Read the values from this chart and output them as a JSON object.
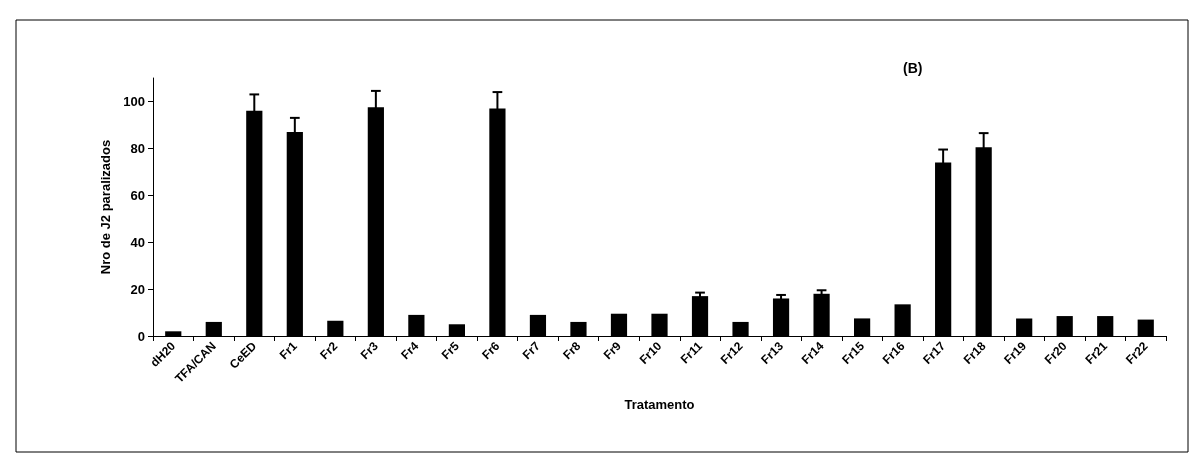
{
  "chart_data": {
    "type": "bar",
    "title": "(B)",
    "xlabel": "Tratamento",
    "ylabel": "Nro de J2 paralizados",
    "categories": [
      "dH20",
      "TFA/CAN",
      "CeED",
      "Fr1",
      "Fr2",
      "Fr3",
      "Fr4",
      "Fr5",
      "Fr6",
      "Fr7",
      "Fr8",
      "Fr9",
      "Fr10",
      "Fr11",
      "Fr12",
      "Fr13",
      "Fr14",
      "Fr15",
      "Fr16",
      "Fr17",
      "Fr18",
      "Fr19",
      "Fr20",
      "Fr21",
      "Fr22"
    ],
    "values": [
      2,
      6,
      96,
      87,
      6.5,
      97.5,
      9,
      5,
      97,
      9,
      6,
      9.5,
      9.5,
      17,
      6,
      16,
      18,
      7.5,
      13.5,
      74,
      80.5,
      7.5,
      8.5,
      8.5,
      7
    ],
    "errors": [
      null,
      null,
      7,
      6,
      null,
      7,
      null,
      null,
      7,
      null,
      null,
      null,
      null,
      1.5,
      null,
      1.5,
      1.5,
      null,
      null,
      5.5,
      6,
      null,
      null,
      null,
      null
    ],
    "color": "#000000",
    "ylim": [
      0,
      110
    ],
    "yticks": [
      0,
      20,
      40,
      60,
      80,
      100
    ],
    "grid": false
  }
}
